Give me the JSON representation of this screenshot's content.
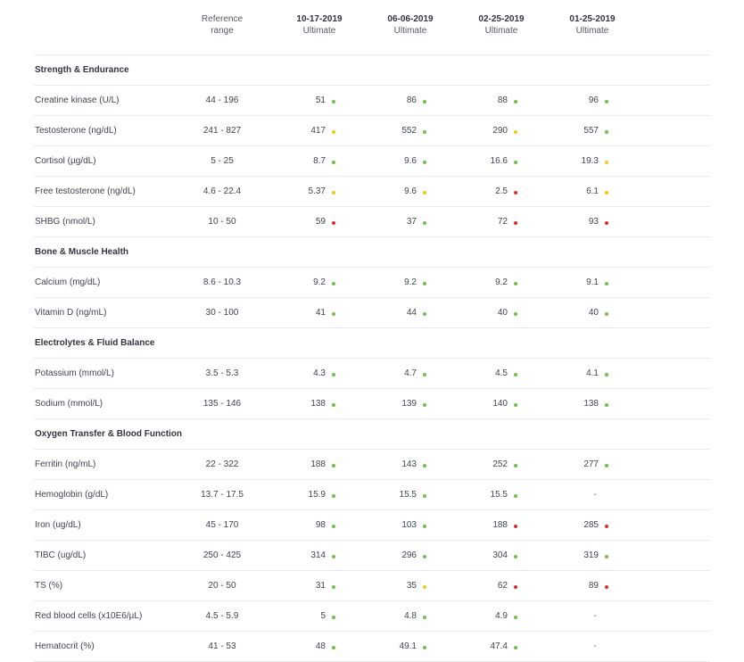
{
  "header": {
    "reference": "Reference range",
    "reference_l1": "Reference",
    "reference_l2": "range",
    "columns": [
      {
        "date": "10-17-2019",
        "sub": "Ultimate"
      },
      {
        "date": "06-06-2019",
        "sub": "Ultimate"
      },
      {
        "date": "02-25-2019",
        "sub": "Ultimate"
      },
      {
        "date": "01-25-2019",
        "sub": "Ultimate"
      }
    ]
  },
  "colors": {
    "green": "#6cc24a",
    "yellow": "#f5c518",
    "red": "#d9302c"
  },
  "rows": [
    {
      "type": "section",
      "title": "Strength & Endurance"
    },
    {
      "type": "item",
      "label": "Creatine kinase (U/L)",
      "ref": "44 - 196",
      "vals": [
        {
          "v": "51",
          "s": "green"
        },
        {
          "v": "86",
          "s": "green"
        },
        {
          "v": "88",
          "s": "green"
        },
        {
          "v": "96",
          "s": "green"
        }
      ]
    },
    {
      "type": "item",
      "label": "Testosterone (ng/dL)",
      "ref": "241 - 827",
      "vals": [
        {
          "v": "417",
          "s": "yellow"
        },
        {
          "v": "552",
          "s": "green"
        },
        {
          "v": "290",
          "s": "yellow"
        },
        {
          "v": "557",
          "s": "green"
        }
      ]
    },
    {
      "type": "item",
      "label": "Cortisol (µg/dL)",
      "ref": "5 - 25",
      "vals": [
        {
          "v": "8.7",
          "s": "green"
        },
        {
          "v": "9.6",
          "s": "green"
        },
        {
          "v": "16.6",
          "s": "green"
        },
        {
          "v": "19.3",
          "s": "yellow"
        }
      ]
    },
    {
      "type": "item",
      "label": "Free testosterone (ng/dL)",
      "ref": "4.6 - 22.4",
      "vals": [
        {
          "v": "5.37",
          "s": "yellow"
        },
        {
          "v": "9.6",
          "s": "yellow"
        },
        {
          "v": "2.5",
          "s": "red"
        },
        {
          "v": "6.1",
          "s": "yellow"
        }
      ]
    },
    {
      "type": "item",
      "label": "SHBG (nmol/L)",
      "ref": "10 - 50",
      "vals": [
        {
          "v": "59",
          "s": "red"
        },
        {
          "v": "37",
          "s": "green"
        },
        {
          "v": "72",
          "s": "red"
        },
        {
          "v": "93",
          "s": "red"
        }
      ]
    },
    {
      "type": "section",
      "title": "Bone & Muscle Health"
    },
    {
      "type": "item",
      "label": "Calcium (mg/dL)",
      "ref": "8.6 - 10.3",
      "vals": [
        {
          "v": "9.2",
          "s": "green"
        },
        {
          "v": "9.2",
          "s": "green"
        },
        {
          "v": "9.2",
          "s": "green"
        },
        {
          "v": "9.1",
          "s": "green"
        }
      ]
    },
    {
      "type": "item",
      "label": "Vitamin D (ng/mL)",
      "ref": "30 - 100",
      "vals": [
        {
          "v": "41",
          "s": "green"
        },
        {
          "v": "44",
          "s": "green"
        },
        {
          "v": "40",
          "s": "green"
        },
        {
          "v": "40",
          "s": "green"
        }
      ]
    },
    {
      "type": "section",
      "title": "Electrolytes & Fluid Balance"
    },
    {
      "type": "item",
      "label": "Potassium (mmol/L)",
      "ref": "3.5 - 5.3",
      "vals": [
        {
          "v": "4.3",
          "s": "green"
        },
        {
          "v": "4.7",
          "s": "green"
        },
        {
          "v": "4.5",
          "s": "green"
        },
        {
          "v": "4.1",
          "s": "green"
        }
      ]
    },
    {
      "type": "item",
      "label": "Sodium (mmol/L)",
      "ref": "135 - 146",
      "vals": [
        {
          "v": "138",
          "s": "green"
        },
        {
          "v": "139",
          "s": "green"
        },
        {
          "v": "140",
          "s": "green"
        },
        {
          "v": "138",
          "s": "green"
        }
      ]
    },
    {
      "type": "section",
      "title": "Oxygen Transfer & Blood Function"
    },
    {
      "type": "item",
      "label": "Ferritin (ng/mL)",
      "ref": "22 - 322",
      "vals": [
        {
          "v": "188",
          "s": "green"
        },
        {
          "v": "143",
          "s": "green"
        },
        {
          "v": "252",
          "s": "green"
        },
        {
          "v": "277",
          "s": "green"
        }
      ]
    },
    {
      "type": "item",
      "label": "Hemoglobin (g/dL)",
      "ref": "13.7 - 17.5",
      "vals": [
        {
          "v": "15.9",
          "s": "green"
        },
        {
          "v": "15.5",
          "s": "green"
        },
        {
          "v": "15.5",
          "s": "green"
        },
        {
          "v": "-",
          "s": "none"
        }
      ]
    },
    {
      "type": "item",
      "label": "Iron (ug/dL)",
      "ref": "45 - 170",
      "vals": [
        {
          "v": "98",
          "s": "green"
        },
        {
          "v": "103",
          "s": "green"
        },
        {
          "v": "188",
          "s": "red"
        },
        {
          "v": "285",
          "s": "red"
        }
      ]
    },
    {
      "type": "item",
      "label": "TIBC (ug/dL)",
      "ref": "250 - 425",
      "vals": [
        {
          "v": "314",
          "s": "green"
        },
        {
          "v": "296",
          "s": "green"
        },
        {
          "v": "304",
          "s": "green"
        },
        {
          "v": "319",
          "s": "green"
        }
      ]
    },
    {
      "type": "item",
      "label": "TS (%)",
      "ref": "20 - 50",
      "vals": [
        {
          "v": "31",
          "s": "green"
        },
        {
          "v": "35",
          "s": "yellow"
        },
        {
          "v": "62",
          "s": "red"
        },
        {
          "v": "89",
          "s": "red"
        }
      ]
    },
    {
      "type": "item",
      "label": "Red blood cells (x10E6/µL)",
      "ref": "4.5 - 5.9",
      "vals": [
        {
          "v": "5",
          "s": "green"
        },
        {
          "v": "4.8",
          "s": "green"
        },
        {
          "v": "4.9",
          "s": "green"
        },
        {
          "v": "-",
          "s": "none"
        }
      ]
    },
    {
      "type": "item",
      "label": "Hematocrit (%)",
      "ref": "41 - 53",
      "vals": [
        {
          "v": "48",
          "s": "green"
        },
        {
          "v": "49.1",
          "s": "green"
        },
        {
          "v": "47.4",
          "s": "green"
        },
        {
          "v": "-",
          "s": "none"
        }
      ]
    }
  ]
}
